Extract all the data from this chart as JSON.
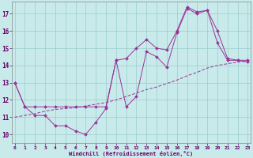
{
  "xlabel": "Windchill (Refroidissement éolien,°C)",
  "x_values": [
    0,
    1,
    2,
    3,
    4,
    5,
    6,
    7,
    8,
    9,
    10,
    11,
    12,
    13,
    14,
    15,
    16,
    17,
    18,
    19,
    20,
    21,
    22,
    23
  ],
  "y_line1": [
    13.0,
    11.6,
    11.1,
    11.1,
    10.5,
    10.5,
    10.2,
    10.0,
    10.7,
    11.5,
    14.3,
    11.6,
    12.2,
    14.8,
    14.5,
    13.9,
    15.9,
    17.3,
    17.0,
    17.2,
    15.3,
    14.3,
    14.3,
    14.2
  ],
  "y_line2": [
    13.0,
    11.6,
    11.6,
    11.6,
    11.6,
    11.6,
    11.6,
    11.6,
    11.6,
    11.6,
    14.3,
    14.4,
    15.0,
    15.5,
    15.0,
    14.9,
    16.0,
    17.4,
    17.1,
    17.2,
    16.0,
    14.4,
    14.3,
    14.3
  ],
  "y_trend": [
    11.0,
    11.1,
    11.2,
    11.35,
    11.45,
    11.5,
    11.55,
    11.65,
    11.75,
    11.85,
    12.0,
    12.2,
    12.4,
    12.6,
    12.75,
    12.95,
    13.15,
    13.4,
    13.6,
    13.85,
    14.0,
    14.1,
    14.2,
    14.25
  ],
  "line_color": "#993399",
  "bg_color": "#c8eaea",
  "grid_color": "#99cccc",
  "ylim": [
    9.5,
    17.7
  ],
  "yticks": [
    10,
    11,
    12,
    13,
    14,
    15,
    16,
    17
  ],
  "xticks": [
    0,
    1,
    2,
    3,
    4,
    5,
    6,
    7,
    8,
    9,
    10,
    11,
    12,
    13,
    14,
    15,
    16,
    17,
    18,
    19,
    20,
    21,
    22,
    23
  ]
}
